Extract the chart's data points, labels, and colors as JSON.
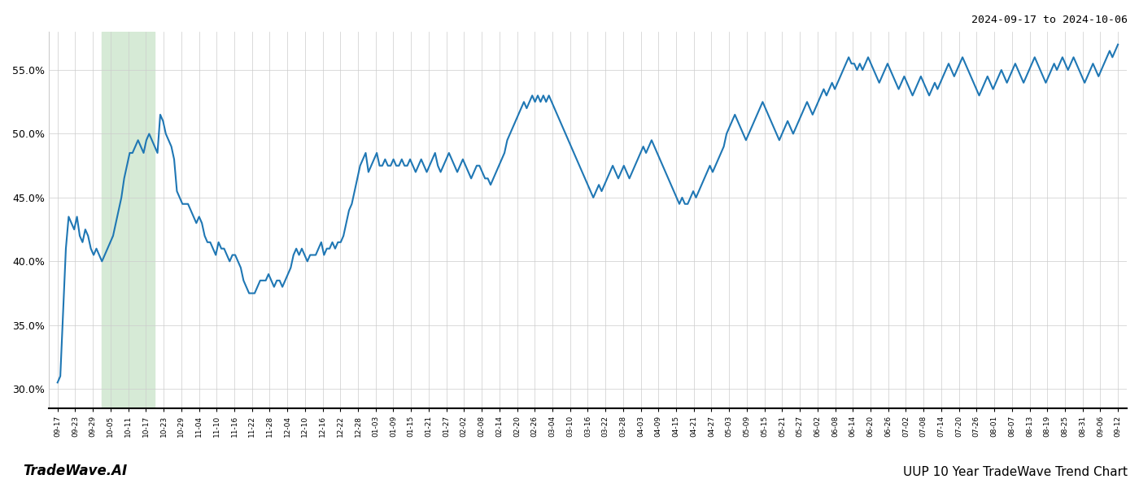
{
  "title_top_right": "2024-09-17 to 2024-10-06",
  "title_bottom_left": "TradeWave.AI",
  "title_bottom_right": "UUP 10 Year TradeWave Trend Chart",
  "line_color": "#1f77b4",
  "line_width": 1.5,
  "bg_color": "#ffffff",
  "grid_color": "#cccccc",
  "highlight_color": "#d6ead6",
  "ylim": [
    28.5,
    58.0
  ],
  "yticks": [
    30.0,
    35.0,
    40.0,
    45.0,
    50.0,
    55.0
  ],
  "x_labels": [
    "09-17",
    "09-23",
    "09-29",
    "10-05",
    "10-11",
    "10-17",
    "10-23",
    "10-29",
    "11-04",
    "11-10",
    "11-16",
    "11-22",
    "11-28",
    "12-04",
    "12-10",
    "12-16",
    "12-22",
    "12-28",
    "01-03",
    "01-09",
    "01-15",
    "01-21",
    "01-27",
    "02-02",
    "02-08",
    "02-14",
    "02-20",
    "02-26",
    "03-04",
    "03-10",
    "03-16",
    "03-22",
    "03-28",
    "04-03",
    "04-09",
    "04-15",
    "04-21",
    "04-27",
    "05-03",
    "05-09",
    "05-15",
    "05-21",
    "05-27",
    "06-02",
    "06-08",
    "06-14",
    "06-20",
    "06-26",
    "07-02",
    "07-08",
    "07-14",
    "07-20",
    "07-26",
    "08-01",
    "08-07",
    "08-13",
    "08-19",
    "08-25",
    "08-31",
    "09-06",
    "09-12"
  ],
  "highlight_start_label": "10-05",
  "highlight_end_label": "10-17",
  "values": [
    30.5,
    31.0,
    36.0,
    41.0,
    43.5,
    43.0,
    42.5,
    43.5,
    42.0,
    41.5,
    42.5,
    42.0,
    41.0,
    40.5,
    41.0,
    40.5,
    40.0,
    40.5,
    41.0,
    41.5,
    42.0,
    43.0,
    44.0,
    45.0,
    46.5,
    47.5,
    48.5,
    48.5,
    49.0,
    49.5,
    49.0,
    48.5,
    49.5,
    50.0,
    49.5,
    49.0,
    48.5,
    51.5,
    51.0,
    50.0,
    49.5,
    49.0,
    48.0,
    45.5,
    45.0,
    44.5,
    44.5,
    44.5,
    44.0,
    43.5,
    43.0,
    43.5,
    43.0,
    42.0,
    41.5,
    41.5,
    41.0,
    40.5,
    41.5,
    41.0,
    41.0,
    40.5,
    40.0,
    40.5,
    40.5,
    40.0,
    39.5,
    38.5,
    38.0,
    37.5,
    37.5,
    37.5,
    38.0,
    38.5,
    38.5,
    38.5,
    39.0,
    38.5,
    38.0,
    38.5,
    38.5,
    38.0,
    38.5,
    39.0,
    39.5,
    40.5,
    41.0,
    40.5,
    41.0,
    40.5,
    40.0,
    40.5,
    40.5,
    40.5,
    41.0,
    41.5,
    40.5,
    41.0,
    41.0,
    41.5,
    41.0,
    41.5,
    41.5,
    42.0,
    43.0,
    44.0,
    44.5,
    45.5,
    46.5,
    47.5,
    48.0,
    48.5,
    47.0,
    47.5,
    48.0,
    48.5,
    47.5,
    47.5,
    48.0,
    47.5,
    47.5,
    48.0,
    47.5,
    47.5,
    48.0,
    47.5,
    47.5,
    48.0,
    47.5,
    47.0,
    47.5,
    48.0,
    47.5,
    47.0,
    47.5,
    48.0,
    48.5,
    47.5,
    47.0,
    47.5,
    48.0,
    48.5,
    48.0,
    47.5,
    47.0,
    47.5,
    48.0,
    47.5,
    47.0,
    46.5,
    47.0,
    47.5,
    47.5,
    47.0,
    46.5,
    46.5,
    46.0,
    46.5,
    47.0,
    47.5,
    48.0,
    48.5,
    49.5,
    50.0,
    50.5,
    51.0,
    51.5,
    52.0,
    52.5,
    52.0,
    52.5,
    53.0,
    52.5,
    53.0,
    52.5,
    53.0,
    52.5,
    53.0,
    52.5,
    52.0,
    51.5,
    51.0,
    50.5,
    50.0,
    49.5,
    49.0,
    48.5,
    48.0,
    47.5,
    47.0,
    46.5,
    46.0,
    45.5,
    45.0,
    45.5,
    46.0,
    45.5,
    46.0,
    46.5,
    47.0,
    47.5,
    47.0,
    46.5,
    47.0,
    47.5,
    47.0,
    46.5,
    47.0,
    47.5,
    48.0,
    48.5,
    49.0,
    48.5,
    49.0,
    49.5,
    49.0,
    48.5,
    48.0,
    47.5,
    47.0,
    46.5,
    46.0,
    45.5,
    45.0,
    44.5,
    45.0,
    44.5,
    44.5,
    45.0,
    45.5,
    45.0,
    45.5,
    46.0,
    46.5,
    47.0,
    47.5,
    47.0,
    47.5,
    48.0,
    48.5,
    49.0,
    50.0,
    50.5,
    51.0,
    51.5,
    51.0,
    50.5,
    50.0,
    49.5,
    50.0,
    50.5,
    51.0,
    51.5,
    52.0,
    52.5,
    52.0,
    51.5,
    51.0,
    50.5,
    50.0,
    49.5,
    50.0,
    50.5,
    51.0,
    50.5,
    50.0,
    50.5,
    51.0,
    51.5,
    52.0,
    52.5,
    52.0,
    51.5,
    52.0,
    52.5,
    53.0,
    53.5,
    53.0,
    53.5,
    54.0,
    53.5,
    54.0,
    54.5,
    55.0,
    55.5,
    56.0,
    55.5,
    55.5,
    55.0,
    55.5,
    55.0,
    55.5,
    56.0,
    55.5,
    55.0,
    54.5,
    54.0,
    54.5,
    55.0,
    55.5,
    55.0,
    54.5,
    54.0,
    53.5,
    54.0,
    54.5,
    54.0,
    53.5,
    53.0,
    53.5,
    54.0,
    54.5,
    54.0,
    53.5,
    53.0,
    53.5,
    54.0,
    53.5,
    54.0,
    54.5,
    55.0,
    55.5,
    55.0,
    54.5,
    55.0,
    55.5,
    56.0,
    55.5,
    55.0,
    54.5,
    54.0,
    53.5,
    53.0,
    53.5,
    54.0,
    54.5,
    54.0,
    53.5,
    54.0,
    54.5,
    55.0,
    54.5,
    54.0,
    54.5,
    55.0,
    55.5,
    55.0,
    54.5,
    54.0,
    54.5,
    55.0,
    55.5,
    56.0,
    55.5,
    55.0,
    54.5,
    54.0,
    54.5,
    55.0,
    55.5,
    55.0,
    55.5,
    56.0,
    55.5,
    55.0,
    55.5,
    56.0,
    55.5,
    55.0,
    54.5,
    54.0,
    54.5,
    55.0,
    55.5,
    55.0,
    54.5,
    55.0,
    55.5,
    56.0,
    56.5,
    56.0,
    56.5,
    57.0
  ]
}
